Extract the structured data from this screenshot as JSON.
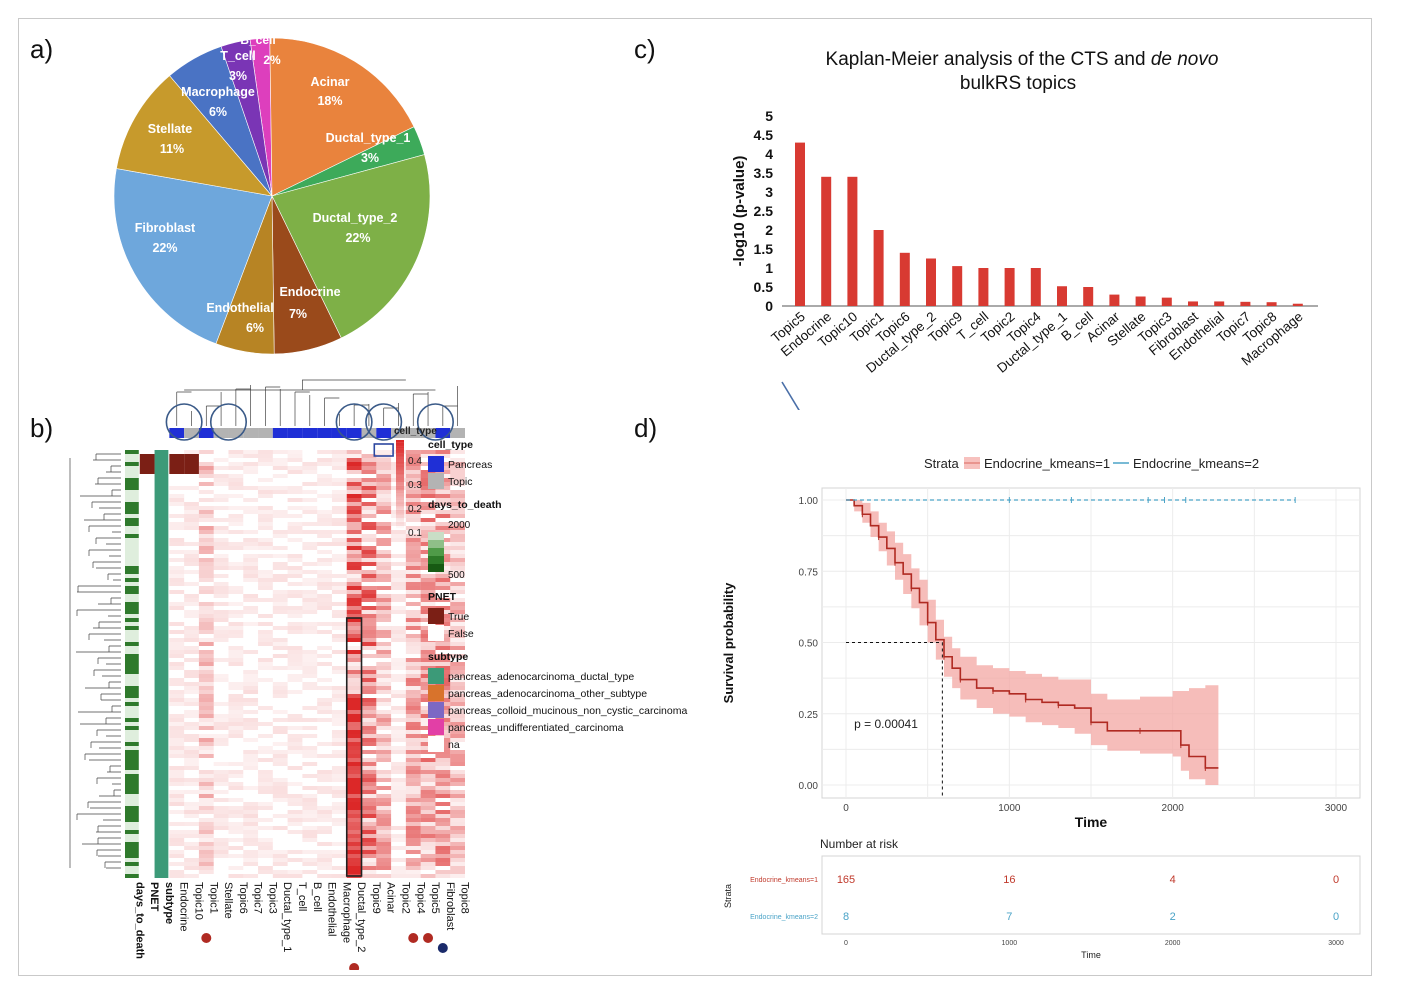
{
  "panels": {
    "a": "a)",
    "b": "b)",
    "c": "c)",
    "d": "d)"
  },
  "chart_data": [
    {
      "id": "a",
      "type": "pie",
      "title": "",
      "slices": [
        {
          "label": "B_cell",
          "pct": "2%",
          "value": 2,
          "color": "#dd3fbd"
        },
        {
          "label": "Acinar",
          "pct": "18%",
          "value": 18,
          "color": "#e9833d"
        },
        {
          "label": "Ductal_type_1",
          "pct": "3%",
          "value": 3,
          "color": "#3daa5a"
        },
        {
          "label": "Ductal_type_2",
          "pct": "22%",
          "value": 22,
          "color": "#7eb047"
        },
        {
          "label": "Endocrine",
          "pct": "7%",
          "value": 7,
          "color": "#9a4a1b"
        },
        {
          "label": "Endothelial",
          "pct": "6%",
          "value": 6,
          "color": "#b78424"
        },
        {
          "label": "Fibroblast",
          "pct": "22%",
          "value": 22,
          "color": "#6ea7dc"
        },
        {
          "label": "Stellate",
          "pct": "11%",
          "value": 11,
          "color": "#c79a2c"
        },
        {
          "label": "Macrophage",
          "pct": "6%",
          "value": 6,
          "color": "#4a73c4"
        },
        {
          "label": "T_cell",
          "pct": "3%",
          "value": 3,
          "color": "#7a35b5"
        }
      ]
    },
    {
      "id": "c",
      "type": "bar",
      "title_line1": "Kaplan-Meier analysis of the CTS and ",
      "title_line1_italic": "de novo",
      "title_line2": "bulkRS topics",
      "xlabel": "",
      "ylabel": "-log10 (p-value)",
      "ylim": [
        0,
        5
      ],
      "yticks": [
        "0",
        "0.5",
        "1",
        "1.5",
        "2",
        "2.5",
        "3",
        "3.5",
        "4",
        "4.5",
        "5"
      ],
      "categories": [
        "Topic5",
        "Endocrine",
        "Topic10",
        "Topic1",
        "Topic6",
        "Ductal_type_2",
        "Topic9",
        "T_cell",
        "Topic2",
        "Topic4",
        "Ductal_type_1",
        "B_cell",
        "Acinar",
        "Stellate",
        "Topic3",
        "Fibroblast",
        "Endothelial",
        "Topic7",
        "Topic8",
        "Macrophage"
      ],
      "values": [
        4.3,
        3.4,
        3.4,
        2.0,
        1.4,
        1.25,
        1.05,
        1.0,
        1.0,
        1.0,
        0.52,
        0.5,
        0.3,
        0.25,
        0.22,
        0.12,
        0.12,
        0.11,
        0.1,
        0.06
      ],
      "bar_color": "#d83a32"
    },
    {
      "id": "d",
      "type": "line",
      "legend_title": "Strata",
      "legend_position": "top",
      "series": [
        {
          "name": "Endocrine_kmeans=1",
          "color": "#c0392b",
          "x": [
            0,
            50,
            100,
            150,
            200,
            250,
            300,
            350,
            400,
            450,
            500,
            550,
            600,
            650,
            700,
            800,
            900,
            1000,
            1100,
            1200,
            1300,
            1400,
            1500,
            1600,
            1800,
            2000,
            2050,
            2100,
            2200,
            2280
          ],
          "y": [
            1.0,
            0.98,
            0.95,
            0.91,
            0.87,
            0.83,
            0.78,
            0.74,
            0.69,
            0.64,
            0.57,
            0.51,
            0.45,
            0.41,
            0.37,
            0.34,
            0.33,
            0.32,
            0.3,
            0.29,
            0.28,
            0.27,
            0.22,
            0.19,
            0.19,
            0.19,
            0.14,
            0.1,
            0.06,
            0.06
          ],
          "lower": [
            1.0,
            0.96,
            0.92,
            0.87,
            0.82,
            0.77,
            0.72,
            0.67,
            0.62,
            0.56,
            0.5,
            0.44,
            0.38,
            0.34,
            0.3,
            0.27,
            0.25,
            0.24,
            0.22,
            0.21,
            0.2,
            0.18,
            0.14,
            0.12,
            0.11,
            0.1,
            0.05,
            0.02,
            0.0,
            0.0
          ],
          "upper": [
            1.0,
            1.0,
            0.99,
            0.96,
            0.92,
            0.89,
            0.85,
            0.81,
            0.76,
            0.72,
            0.65,
            0.58,
            0.52,
            0.48,
            0.45,
            0.42,
            0.41,
            0.4,
            0.39,
            0.38,
            0.37,
            0.37,
            0.32,
            0.3,
            0.31,
            0.33,
            0.33,
            0.34,
            0.35,
            0.35
          ]
        },
        {
          "name": "Endocrine_kmeans=2",
          "color": "#4aa3c7",
          "x": [
            0,
            2750
          ],
          "y": [
            1.0,
            1.0
          ]
        }
      ],
      "median_line": {
        "x": 590,
        "y": 0.5
      },
      "xlabel": "Time",
      "ylabel": "Survival probability",
      "xlim": [
        0,
        3000
      ],
      "ylim": [
        0,
        1
      ],
      "xticks": [
        "0",
        "1000",
        "2000",
        "3000"
      ],
      "yticks": [
        "0.00",
        "0.25",
        "0.50",
        "0.75",
        "1.00"
      ],
      "annotation": "p = 0.00041",
      "risk_table": {
        "title": "Number at risk",
        "ylabel": "Strata",
        "xlabel": "Time",
        "rows": [
          {
            "label": "Endocrine_kmeans=1",
            "color": "#c0392b",
            "values": [
              "165",
              "16",
              "4",
              "0"
            ]
          },
          {
            "label": "Endocrine_kmeans=2",
            "color": "#4aa3c7",
            "values": [
              "8",
              "7",
              "2",
              "0"
            ]
          }
        ]
      }
    },
    {
      "id": "b",
      "type": "heatmap",
      "col_labels": [
        "days_to_death",
        "PNET",
        "subtype",
        "Endocrine",
        "Topic10",
        "Topic1",
        "Stellate",
        "Topic6",
        "Topic7",
        "Topic3",
        "Ductal_type_1",
        "T_cell",
        "B_cell",
        "Endothelial",
        "Macrophage",
        "Ductal_type_2",
        "Topic9",
        "Acinar",
        "Topic2",
        "Topic4",
        "Topic5",
        "Fibroblast",
        "Topic8"
      ],
      "colorbar_ticks": [
        "0.1",
        "0.2",
        "0.3",
        "0.4"
      ],
      "colorbar_title": "cell_type",
      "legend": {
        "cell_type": {
          "title": "cell_type",
          "items": [
            {
              "label": "Pancreas",
              "color": "#1f2fd6"
            },
            {
              "label": "Topic",
              "color": "#b3b3b3"
            }
          ]
        },
        "days_to_death": {
          "title": "days_to_death",
          "top": "2000",
          "bottom": "500"
        },
        "PNET": {
          "title": "PNET",
          "items": [
            {
              "label": "True",
              "color": "#7b1f15"
            },
            {
              "label": "False",
              "color": "#ffffff"
            }
          ]
        },
        "subtype": {
          "title": "subtype",
          "items": [
            {
              "label": "pancreas_adenocarcinoma_ductal_type",
              "color": "#3c9a78"
            },
            {
              "label": "pancreas_adenocarcinoma_other_subtype",
              "color": "#d8732c"
            },
            {
              "label": "pancreas_colloid_mucinous_non_cystic_carcinoma",
              "color": "#7c68c4"
            },
            {
              "label": "pancreas_undifferentiated_carcinoma",
              "color": "#e23fa6"
            },
            {
              "label": "na",
              "color": "#ffffff"
            }
          ]
        }
      }
    }
  ]
}
